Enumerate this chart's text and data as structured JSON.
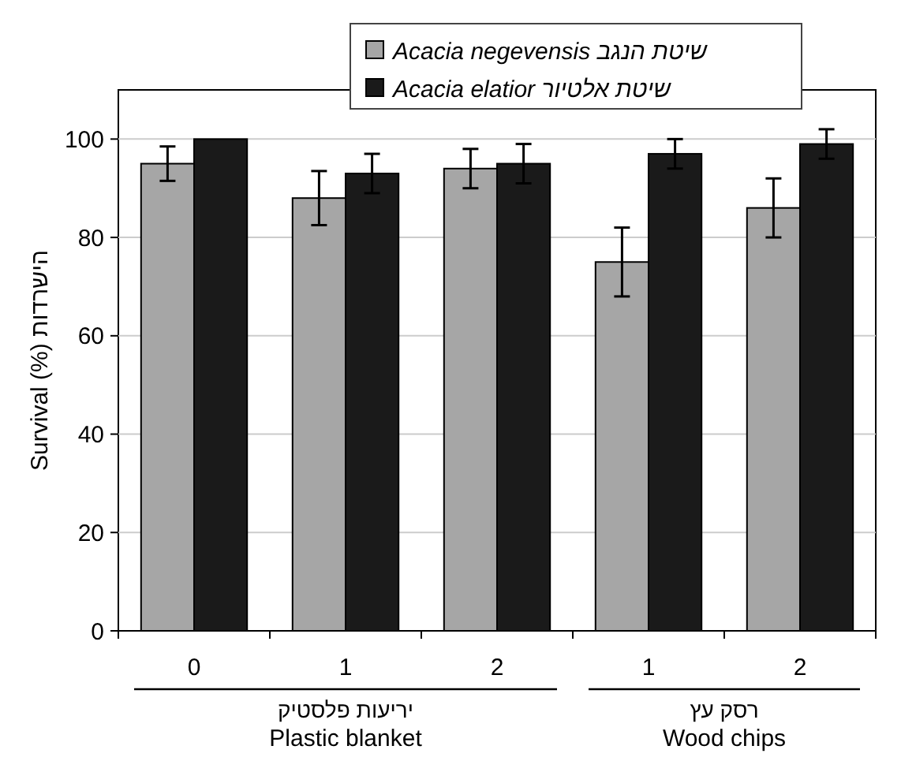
{
  "chart_data": {
    "type": "bar",
    "categories": [
      "0",
      "1",
      "2",
      "1",
      "2"
    ],
    "ylabel": "Survival (%) הישרדות",
    "series": [
      {
        "name": "Acacia negevensis שיטת הנגב",
        "color": "#a6a6a6",
        "values": [
          95,
          88,
          94,
          75,
          86
        ],
        "errors": [
          3.5,
          5.5,
          4,
          7,
          6
        ]
      },
      {
        "name": "Acacia elatior שיטת אלטיור",
        "color": "#1a1a1a",
        "values": [
          100,
          93,
          95,
          97,
          99
        ],
        "errors": [
          null,
          4,
          4,
          3,
          3
        ]
      }
    ],
    "ylim": [
      0,
      110
    ],
    "yticks": [
      0,
      20,
      40,
      60,
      80,
      100
    ],
    "grid": "y",
    "legend": "top",
    "annotations": [
      "יריעות פלסטיק",
      "Plastic blanket",
      "רסק עץ",
      "Wood chips"
    ]
  }
}
